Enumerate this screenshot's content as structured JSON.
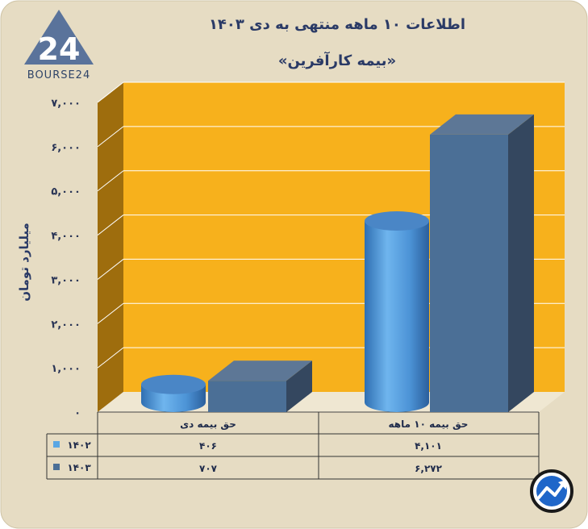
{
  "header": {
    "title": "اطلاعات ۱۰ ماهه منتهی به دی ۱۴۰۳",
    "subtitle": "«بیمه کارآفرین»"
  },
  "logo": {
    "text": "BOURSE24",
    "mark": "24"
  },
  "colors": {
    "background": "#e6dcc3",
    "plot_back": "#f7b11c",
    "plot_side": "#9e6d0d",
    "series_1402": "#5aa7e4",
    "series_1403": "#4b6f96"
  },
  "chart_data": {
    "type": "bar",
    "categories": [
      "حق بیمه دی",
      "حق بیمه ۱۰ ماهه"
    ],
    "series": [
      {
        "name": "۱۴۰۲",
        "values": [
          406,
          4101
        ],
        "labels": [
          "۴۰۶",
          "۴,۱۰۱"
        ]
      },
      {
        "name": "۱۴۰۳",
        "values": [
          707,
          6272
        ],
        "labels": [
          "۷۰۷",
          "۶,۲۷۲"
        ]
      }
    ],
    "ylabel": "میلیارد تومان",
    "ylim": [
      0,
      7000
    ],
    "yticks": [
      0,
      1000,
      2000,
      3000,
      4000,
      5000,
      6000,
      7000
    ],
    "ytick_labels": [
      "۰",
      "۱,۰۰۰",
      "۲,۰۰۰",
      "۳,۰۰۰",
      "۴,۰۰۰",
      "۵,۰۰۰",
      "۶,۰۰۰",
      "۷,۰۰۰"
    ],
    "grid": true,
    "legend": "data-table"
  }
}
